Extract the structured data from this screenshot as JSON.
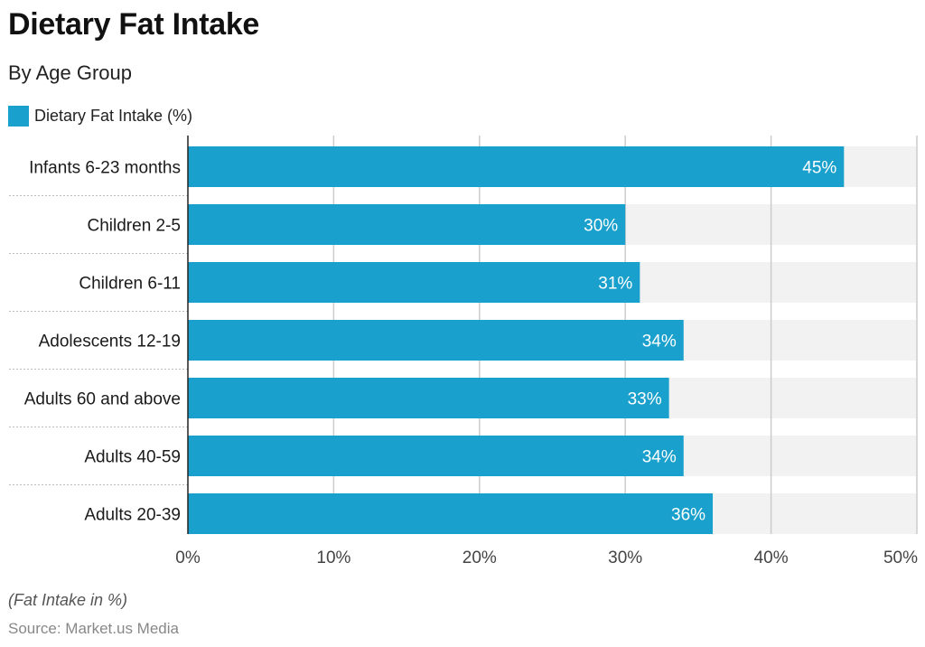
{
  "header": {
    "title": "Dietary Fat Intake",
    "subtitle": "By Age Group"
  },
  "footer": {
    "note": "(Fat Intake in %)",
    "source": "Source: Market.us Media"
  },
  "colors": {
    "bar": "#1aa0cc",
    "track": "#f2f2f2",
    "gridline": "#cccccc",
    "bar_label": "#ffffff"
  },
  "chart_data": {
    "type": "bar",
    "orientation": "horizontal",
    "categories": [
      "Infants 6-23 months",
      "Children 2-5",
      "Children 6-11",
      "Adolescents 12-19",
      "Adults 60 and above",
      "Adults 40-59",
      "Adults 20-39"
    ],
    "series": [
      {
        "name": "Dietary Fat Intake (%)",
        "values": [
          45,
          30,
          31,
          34,
          33,
          34,
          36
        ],
        "labels": [
          "45%",
          "30%",
          "31%",
          "34%",
          "33%",
          "34%",
          "36%"
        ]
      }
    ],
    "xlim": [
      0,
      50
    ],
    "xticks": [
      0,
      10,
      20,
      30,
      40,
      50
    ],
    "xtick_labels": [
      "0%",
      "10%",
      "20%",
      "30%",
      "40%",
      "50%"
    ],
    "grid": true,
    "legend_position": "top-left"
  }
}
